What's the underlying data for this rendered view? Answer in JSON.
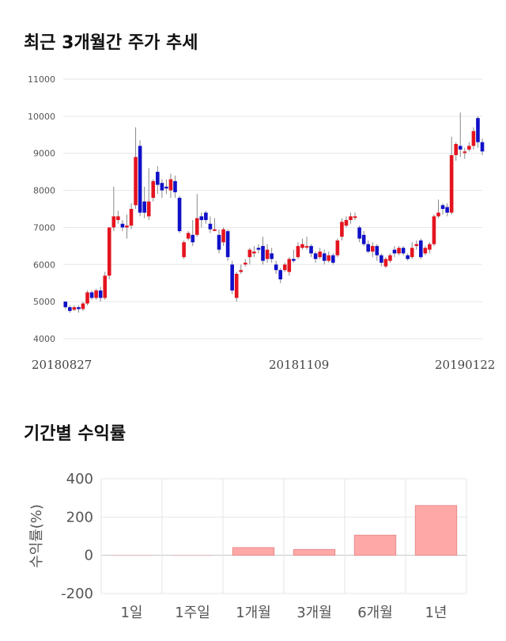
{
  "sections": {
    "price_title": "최근 3개월간 주가 추세",
    "returns_title": "기간별 수익률"
  },
  "chart_data": [
    {
      "type": "candlestick",
      "title": "최근 3개월간 주가 추세",
      "ylim": [
        4000,
        11000
      ],
      "y_ticks": [
        "11000",
        "10000",
        "9000",
        "8000",
        "7000",
        "6000",
        "5000",
        "4000"
      ],
      "x_labels": [
        "20180827",
        "20181109",
        "20190122"
      ],
      "grid": true,
      "colors": {
        "up": "#e4141f",
        "down": "#1010c8",
        "wick": "#888888"
      },
      "candles": [
        [
          5000,
          4850,
          5000,
          4800
        ],
        [
          4850,
          4750,
          4900,
          4700
        ],
        [
          4780,
          4850,
          4900,
          4750
        ],
        [
          4850,
          4800,
          4900,
          4700
        ],
        [
          4800,
          4950,
          5000,
          4750
        ],
        [
          4950,
          5250,
          5300,
          4900
        ],
        [
          5250,
          5100,
          5300,
          5050
        ],
        [
          5100,
          5300,
          5350,
          5050
        ],
        [
          5300,
          5100,
          5400,
          5000
        ],
        [
          5100,
          5700,
          5800,
          5050
        ],
        [
          5700,
          7000,
          7000,
          5600
        ],
        [
          7000,
          7300,
          8100,
          6900
        ],
        [
          7200,
          7300,
          7450,
          7100
        ],
        [
          7100,
          7000,
          7200,
          6900
        ],
        [
          7000,
          7050,
          7350,
          6700
        ],
        [
          7050,
          7500,
          7650,
          6950
        ],
        [
          7600,
          8900,
          9700,
          7500
        ],
        [
          9200,
          7400,
          9350,
          7300
        ],
        [
          7700,
          7400,
          8100,
          7250
        ],
        [
          7300,
          7700,
          8600,
          7200
        ],
        [
          7800,
          8250,
          8300,
          7700
        ],
        [
          8500,
          8150,
          8650,
          7900
        ],
        [
          8200,
          8000,
          8300,
          7800
        ],
        [
          8100,
          8050,
          8300,
          7900
        ],
        [
          8000,
          8300,
          8450,
          7800
        ],
        [
          8250,
          7950,
          8400,
          7800
        ],
        [
          7800,
          6900,
          7850,
          6850
        ],
        [
          6200,
          6600,
          6650,
          6150
        ],
        [
          6700,
          6850,
          6900,
          6650
        ],
        [
          6800,
          6600,
          7200,
          6500
        ],
        [
          6800,
          7250,
          7900,
          6750
        ],
        [
          7300,
          7200,
          7400,
          7000
        ],
        [
          7400,
          7200,
          7450,
          7100
        ],
        [
          7100,
          6950,
          7300,
          6850
        ],
        [
          6950,
          6950,
          7250,
          6900
        ],
        [
          6800,
          6400,
          6950,
          6300
        ],
        [
          6600,
          6950,
          7000,
          6500
        ],
        [
          6900,
          6200,
          6950,
          6100
        ],
        [
          6000,
          5300,
          6100,
          5200
        ],
        [
          5100,
          5750,
          5800,
          5000
        ],
        [
          5800,
          5850,
          6000,
          5750
        ],
        [
          6000,
          6050,
          6150,
          5950
        ],
        [
          6200,
          6400,
          6450,
          6000
        ],
        [
          6300,
          6350,
          6500,
          6200
        ],
        [
          6450,
          6400,
          6550,
          6300
        ],
        [
          6500,
          6100,
          6750,
          6000
        ],
        [
          6150,
          6400,
          6550,
          6050
        ],
        [
          6300,
          6150,
          6450,
          6050
        ],
        [
          6000,
          5850,
          6100,
          5750
        ],
        [
          5850,
          5600,
          5900,
          5500
        ],
        [
          5850,
          6000,
          6050,
          5800
        ],
        [
          5800,
          6150,
          6200,
          5700
        ],
        [
          6150,
          6100,
          6400,
          6050
        ],
        [
          6200,
          6500,
          6600,
          6150
        ],
        [
          6450,
          6550,
          6700,
          6400
        ],
        [
          6500,
          6500,
          6750,
          6400
        ],
        [
          6500,
          6300,
          6550,
          6200
        ],
        [
          6300,
          6150,
          6350,
          6050
        ],
        [
          6200,
          6350,
          6450,
          6150
        ],
        [
          6300,
          6100,
          6400,
          6000
        ],
        [
          6100,
          6250,
          6350,
          6050
        ],
        [
          6250,
          6050,
          6300,
          6000
        ],
        [
          6250,
          6650,
          6700,
          6200
        ],
        [
          6750,
          7150,
          7250,
          6650
        ],
        [
          7050,
          7200,
          7300,
          7000
        ],
        [
          7200,
          7300,
          7400,
          7100
        ],
        [
          7300,
          7300,
          7400,
          7200
        ],
        [
          7000,
          6700,
          7050,
          6600
        ],
        [
          6800,
          6550,
          6900,
          6500
        ],
        [
          6550,
          6350,
          6650,
          6300
        ],
        [
          6350,
          6500,
          6600,
          6200
        ],
        [
          6500,
          6250,
          6550,
          6100
        ],
        [
          6250,
          6050,
          6300,
          5950
        ],
        [
          5950,
          6150,
          6200,
          5900
        ],
        [
          6100,
          6250,
          6300,
          6050
        ],
        [
          6400,
          6300,
          6500,
          6200
        ],
        [
          6300,
          6450,
          6500,
          6250
        ],
        [
          6450,
          6300,
          6500,
          6250
        ],
        [
          6250,
          6150,
          6300,
          6100
        ],
        [
          6200,
          6450,
          6600,
          6150
        ],
        [
          6500,
          6550,
          6650,
          6400
        ],
        [
          6650,
          6200,
          6700,
          6150
        ],
        [
          6300,
          6450,
          6500,
          6250
        ],
        [
          6400,
          6550,
          6600,
          6300
        ],
        [
          6550,
          7300,
          7350,
          6500
        ],
        [
          7300,
          7400,
          7750,
          7250
        ],
        [
          7600,
          7500,
          7650,
          7350
        ],
        [
          7550,
          7400,
          7650,
          7300
        ],
        [
          7400,
          8950,
          9450,
          7350
        ],
        [
          8950,
          9250,
          9300,
          8800
        ],
        [
          9200,
          9100,
          10100,
          8900
        ],
        [
          9050,
          9050,
          9150,
          8850
        ],
        [
          9100,
          9200,
          9300,
          9050
        ],
        [
          9200,
          9600,
          9700,
          9100
        ],
        [
          9950,
          9300,
          10000,
          9150
        ],
        [
          9300,
          9050,
          9400,
          8950
        ]
      ]
    },
    {
      "type": "bar",
      "title": "기간별 수익률",
      "categories": [
        "1일",
        "1주일",
        "1개월",
        "3개월",
        "6개월",
        "1년"
      ],
      "values": [
        0.0,
        0.0,
        40,
        30,
        105,
        260
      ],
      "ylabel": "수익률(%)",
      "ylim": [
        -200,
        400
      ],
      "y_ticks": [
        "400",
        "200",
        "0",
        "-200"
      ],
      "bar_color": "#ffa8a8",
      "bar_edge_color": "#e88a8a",
      "grid": true
    }
  ]
}
